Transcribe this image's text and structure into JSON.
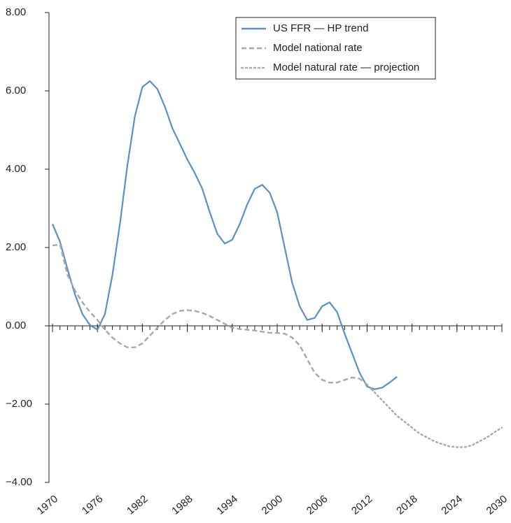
{
  "chart_data": {
    "type": "line",
    "x": [
      1970,
      1971,
      1972,
      1973,
      1974,
      1975,
      1976,
      1977,
      1978,
      1979,
      1980,
      1981,
      1982,
      1983,
      1984,
      1985,
      1986,
      1987,
      1988,
      1989,
      1990,
      1991,
      1992,
      1993,
      1994,
      1995,
      1996,
      1997,
      1998,
      1999,
      2000,
      2001,
      2002,
      2003,
      2004,
      2005,
      2006,
      2007,
      2008,
      2009,
      2010,
      2011,
      2012,
      2013,
      2014,
      2015,
      2016,
      2017,
      2018,
      2019,
      2020,
      2021,
      2022,
      2023,
      2024,
      2025,
      2026,
      2027,
      2028,
      2029,
      2030
    ],
    "series": [
      {
        "name": "US FFR — HP trend",
        "color": "#5b8fc7",
        "style": "solid",
        "values": [
          2.6,
          2.15,
          1.45,
          0.8,
          0.3,
          0.02,
          -0.1,
          0.3,
          1.3,
          2.6,
          4.1,
          5.35,
          6.1,
          6.25,
          6.05,
          5.6,
          5.05,
          4.65,
          4.25,
          3.9,
          3.5,
          2.9,
          2.35,
          2.1,
          2.2,
          2.6,
          3.1,
          3.5,
          3.6,
          3.4,
          2.9,
          2.0,
          1.1,
          0.5,
          0.15,
          0.2,
          0.5,
          0.6,
          0.35,
          -0.2,
          -0.7,
          -1.2,
          -1.55,
          -1.62,
          -1.58,
          -1.45,
          -1.3,
          null,
          null,
          null,
          null,
          null,
          null,
          null,
          null,
          null,
          null,
          null,
          null,
          null,
          null
        ]
      },
      {
        "name": "Model national rate",
        "color": "#a8a8a8",
        "style": "dashed",
        "values": [
          2.05,
          2.08,
          1.3,
          0.9,
          0.6,
          0.35,
          0.15,
          -0.1,
          -0.3,
          -0.45,
          -0.55,
          -0.55,
          -0.45,
          -0.25,
          -0.05,
          0.15,
          0.3,
          0.38,
          0.4,
          0.38,
          0.33,
          0.25,
          0.15,
          0.05,
          -0.05,
          -0.08,
          -0.1,
          -0.12,
          -0.15,
          -0.18,
          -0.18,
          -0.2,
          -0.3,
          -0.5,
          -0.85,
          -1.2,
          -1.38,
          -1.45,
          -1.45,
          -1.38,
          -1.32,
          -1.35,
          -1.5,
          -1.7,
          null,
          null,
          null,
          null,
          null,
          null,
          null,
          null,
          null,
          null,
          null,
          null,
          null,
          null,
          null,
          null,
          null
        ]
      },
      {
        "name": "Model natural rate — projection",
        "color": "#a8a8a8",
        "style": "dotted",
        "values": [
          null,
          null,
          null,
          null,
          null,
          null,
          null,
          null,
          null,
          null,
          null,
          null,
          null,
          null,
          null,
          null,
          null,
          null,
          null,
          null,
          null,
          null,
          null,
          null,
          null,
          null,
          null,
          null,
          null,
          null,
          null,
          null,
          null,
          null,
          null,
          null,
          null,
          null,
          null,
          null,
          null,
          null,
          null,
          -1.7,
          -1.9,
          -2.1,
          -2.3,
          -2.45,
          -2.6,
          -2.75,
          -2.85,
          -2.95,
          -3.02,
          -3.08,
          -3.1,
          -3.1,
          -3.05,
          -2.95,
          -2.85,
          -2.72,
          -2.6
        ]
      }
    ],
    "xlim": [
      1970,
      2030
    ],
    "xticks": [
      1970,
      1976,
      1982,
      1988,
      1994,
      2000,
      2006,
      2012,
      2018,
      2024,
      2030
    ],
    "ylim": [
      -4,
      8
    ],
    "yticks": [
      {
        "value": -4,
        "label": "−4.00"
      },
      {
        "value": -2,
        "label": "−2.00"
      },
      {
        "value": 0,
        "label": "0.00"
      },
      {
        "value": 2,
        "label": "2.00"
      },
      {
        "value": 4,
        "label": "4.00"
      },
      {
        "value": 6,
        "label": "6.00"
      },
      {
        "value": 8,
        "label": "8.00"
      }
    ],
    "legend": "top-right"
  }
}
